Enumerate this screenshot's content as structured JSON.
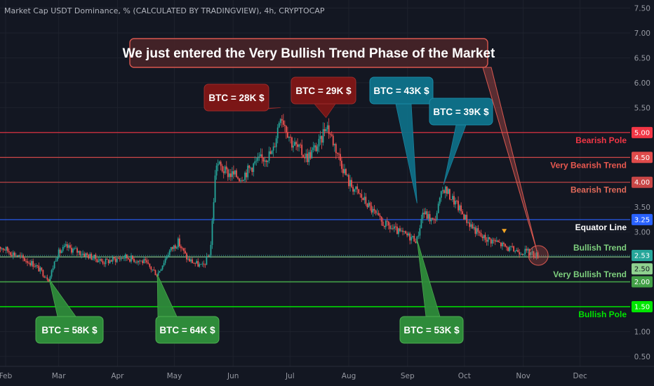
{
  "header": {
    "title": "Market Cap USDT Dominance, % (CALCULATED BY TRADINGVIEW), 4h, CRYPTOCAP"
  },
  "banner": {
    "text": "We just entered the Very Bullish Trend Phase of the Market"
  },
  "colors": {
    "background": "#131722",
    "candle_up": "#26a69a",
    "candle_down": "#ef5350",
    "red_box": "#7b1616",
    "teal_box": "#0e6e86",
    "green_box": "#2e8b3a"
  },
  "chart_data": {
    "type": "candlestick",
    "title": "Market Cap USDT Dominance, % (CALCULATED BY TRADINGVIEW), 4h, CRYPTOCAP",
    "x_axis": {
      "ticks": [
        "Feb",
        "Mar",
        "Apr",
        "May",
        "Jun",
        "Jul",
        "Aug",
        "Sep",
        "Oct",
        "Nov",
        "Dec"
      ],
      "range": [
        "2021-02-01",
        "2021-12-20"
      ]
    },
    "y_axis": {
      "ticks": [
        "0.50",
        "1.00",
        "1.50",
        "2.00",
        "2.50",
        "3.00",
        "3.50",
        "4.00",
        "4.50",
        "5.00",
        "5.50",
        "6.00",
        "6.50",
        "7.00",
        "7.50"
      ],
      "range": [
        0.4,
        7.55
      ]
    },
    "price_path": [
      [
        "2021-01-27",
        2.75
      ],
      [
        "2021-02-06",
        2.55
      ],
      [
        "2021-02-16",
        2.35
      ],
      [
        "2021-02-24",
        2.05
      ],
      [
        "2021-02-28",
        2.55
      ],
      [
        "2021-03-05",
        2.7
      ],
      [
        "2021-03-15",
        2.55
      ],
      [
        "2021-03-25",
        2.4
      ],
      [
        "2021-04-05",
        2.5
      ],
      [
        "2021-04-15",
        2.4
      ],
      [
        "2021-04-22",
        2.15
      ],
      [
        "2021-04-28",
        2.6
      ],
      [
        "2021-05-03",
        2.8
      ],
      [
        "2021-05-08",
        2.45
      ],
      [
        "2021-05-16",
        2.3
      ],
      [
        "2021-05-20",
        2.6
      ],
      [
        "2021-05-23",
        4.4
      ],
      [
        "2021-05-28",
        4.2
      ],
      [
        "2021-06-05",
        4.1
      ],
      [
        "2021-06-13",
        4.4
      ],
      [
        "2021-06-22",
        4.6
      ],
      [
        "2021-06-26",
        5.4
      ],
      [
        "2021-07-02",
        4.8
      ],
      [
        "2021-07-10",
        4.5
      ],
      [
        "2021-07-17",
        4.8
      ],
      [
        "2021-07-20",
        5.2
      ],
      [
        "2021-07-26",
        4.6
      ],
      [
        "2021-08-01",
        4.0
      ],
      [
        "2021-08-10",
        3.6
      ],
      [
        "2021-08-18",
        3.2
      ],
      [
        "2021-08-27",
        3.0
      ],
      [
        "2021-09-06",
        2.85
      ],
      [
        "2021-09-09",
        3.4
      ],
      [
        "2021-09-15",
        3.2
      ],
      [
        "2021-09-20",
        3.9
      ],
      [
        "2021-09-26",
        3.6
      ],
      [
        "2021-10-03",
        3.2
      ],
      [
        "2021-10-10",
        2.9
      ],
      [
        "2021-10-18",
        2.8
      ],
      [
        "2021-10-25",
        2.65
      ],
      [
        "2021-11-03",
        2.6
      ],
      [
        "2021-11-09",
        2.53
      ]
    ],
    "last_value": 2.53,
    "horizontal_levels": [
      {
        "value": 5.0,
        "label": "Bearish Pole",
        "badge": "5.00",
        "color": "#f23645",
        "label_color": "#f23645"
      },
      {
        "value": 4.5,
        "label": "Very Bearish Trend",
        "badge": "4.50",
        "color": "#e04b4b",
        "label_color": "#e8584f"
      },
      {
        "value": 4.0,
        "label": "Bearish Trend",
        "badge": "4.00",
        "color": "#c84646",
        "label_color": "#e26a5a"
      },
      {
        "value": 3.25,
        "label": "Equator Line",
        "badge": "3.25",
        "color": "#2962ff",
        "label_color": "#ffffff"
      },
      {
        "value": 2.5,
        "label": "Very Bullish Trend",
        "badge": "2.50",
        "color": "#8fd18f",
        "label_color": "#7ed07e"
      },
      {
        "value": 2.0,
        "label": "",
        "badge": "2.00",
        "color": "#43a047",
        "label_color": "#43a047"
      },
      {
        "value": 1.5,
        "label": "Bullish Pole",
        "badge": "1.50",
        "color": "#00e600",
        "label_color": "#00e600"
      }
    ],
    "bullish_trend_label": "Bullish Trend",
    "annotations": [
      {
        "text": "BTC = 28K $",
        "style": "red",
        "point": [
          "2021-06-26",
          5.5
        ]
      },
      {
        "text": "BTC = 29K $",
        "style": "red",
        "point": [
          "2021-07-20",
          5.3
        ]
      },
      {
        "text": "BTC = 43K $",
        "style": "teal",
        "point": [
          "2021-09-06",
          3.58
        ]
      },
      {
        "text": "BTC = 39K $",
        "style": "teal",
        "point": [
          "2021-09-20",
          3.95
        ]
      },
      {
        "text": "BTC = 58K $",
        "style": "green",
        "point": [
          "2021-02-24",
          2.05
        ]
      },
      {
        "text": "BTC = 64K $",
        "style": "green",
        "point": [
          "2021-04-22",
          2.15
        ]
      },
      {
        "text": "BTC = 53K $",
        "style": "green",
        "point": [
          "2021-09-06",
          2.85
        ]
      }
    ]
  }
}
